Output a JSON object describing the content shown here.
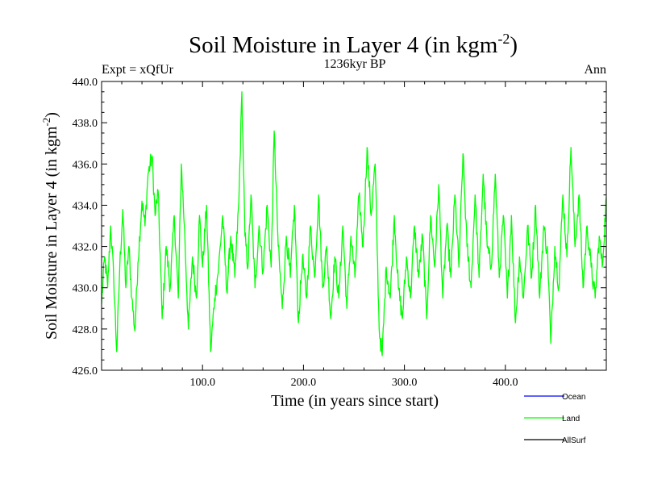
{
  "chart_data": {
    "type": "line",
    "title": "Soil Moisture in Layer 4 (in kgm",
    "title_sup": "-2",
    "title_close": ")",
    "subtitle": "1236kyr BP",
    "left_label": "Expt = xQfUr",
    "right_label": "Ann",
    "xlabel": "Time (in years since start)",
    "ylabel": "Soil Moisture in Layer 4 (in kgm",
    "ylabel_sup": "-2",
    "ylabel_close": ")",
    "xlim": [
      0,
      500
    ],
    "ylim": [
      426.0,
      440.0
    ],
    "x_ticks": [
      100,
      200,
      300,
      400
    ],
    "x_tick_labels": [
      "100.0",
      "200.0",
      "300.0",
      "400.0"
    ],
    "y_ticks": [
      426,
      428,
      430,
      432,
      434,
      436,
      438,
      440
    ],
    "y_tick_labels": [
      "426.0",
      "428.0",
      "430.0",
      "432.0",
      "434.0",
      "436.0",
      "438.0",
      "440.0"
    ],
    "legend_position": "bottom-right",
    "legend": [
      {
        "name": "Ocean",
        "color": "#0000ff"
      },
      {
        "name": "Land",
        "color": "#00ff00"
      },
      {
        "name": "AllSurf",
        "color": "#000000"
      }
    ],
    "series": [
      {
        "name": "Land",
        "color": "#00ff00",
        "anchors": [
          [
            0,
            429.2
          ],
          [
            3,
            431.5
          ],
          [
            6,
            430.0
          ],
          [
            9,
            433.0
          ],
          [
            12,
            430.5
          ],
          [
            15,
            426.9
          ],
          [
            18,
            431.0
          ],
          [
            21,
            433.8
          ],
          [
            24,
            430.0
          ],
          [
            27,
            432.0
          ],
          [
            30,
            429.5
          ],
          [
            33,
            427.9
          ],
          [
            36,
            431.2
          ],
          [
            40,
            434.2
          ],
          [
            43,
            433.0
          ],
          [
            46,
            435.5
          ],
          [
            50,
            436.4
          ],
          [
            53,
            433.5
          ],
          [
            56,
            434.7
          ],
          [
            60,
            428.5
          ],
          [
            64,
            432.0
          ],
          [
            68,
            430.0
          ],
          [
            72,
            433.5
          ],
          [
            76,
            429.5
          ],
          [
            79,
            436.0
          ],
          [
            82,
            433.0
          ],
          [
            86,
            428.0
          ],
          [
            90,
            431.5
          ],
          [
            94,
            429.5
          ],
          [
            97,
            433.5
          ],
          [
            100,
            431.0
          ],
          [
            104,
            434.0
          ],
          [
            108,
            426.9
          ],
          [
            112,
            429.5
          ],
          [
            116,
            431.0
          ],
          [
            120,
            433.5
          ],
          [
            124,
            429.8
          ],
          [
            128,
            432.5
          ],
          [
            132,
            430.5
          ],
          [
            136,
            434.2
          ],
          [
            139,
            439.5
          ],
          [
            142,
            432.5
          ],
          [
            145,
            431.0
          ],
          [
            148,
            434.5
          ],
          [
            152,
            430.0
          ],
          [
            156,
            433.0
          ],
          [
            160,
            430.8
          ],
          [
            164,
            434.0
          ],
          [
            168,
            431.0
          ],
          [
            171,
            437.6
          ],
          [
            175,
            432.0
          ],
          [
            179,
            429.0
          ],
          [
            183,
            432.5
          ],
          [
            187,
            430.5
          ],
          [
            191,
            434.0
          ],
          [
            195,
            428.3
          ],
          [
            199,
            431.5
          ],
          [
            203,
            429.5
          ],
          [
            207,
            433.0
          ],
          [
            211,
            430.5
          ],
          [
            215,
            434.5
          ],
          [
            219,
            430.0
          ],
          [
            223,
            432.0
          ],
          [
            227,
            428.5
          ],
          [
            231,
            431.5
          ],
          [
            235,
            429.5
          ],
          [
            239,
            433.0
          ],
          [
            243,
            429.0
          ],
          [
            247,
            432.5
          ],
          [
            251,
            430.5
          ],
          [
            255,
            434.5
          ],
          [
            259,
            432.0
          ],
          [
            263,
            436.8
          ],
          [
            267,
            433.5
          ],
          [
            271,
            436.0
          ],
          [
            275,
            428.0
          ],
          [
            278,
            426.7
          ],
          [
            282,
            431.0
          ],
          [
            286,
            429.5
          ],
          [
            290,
            433.5
          ],
          [
            294,
            430.0
          ],
          [
            298,
            428.5
          ],
          [
            302,
            431.5
          ],
          [
            306,
            429.5
          ],
          [
            310,
            433.0
          ],
          [
            314,
            430.5
          ],
          [
            318,
            432.5
          ],
          [
            322,
            428.5
          ],
          [
            326,
            433.5
          ],
          [
            330,
            431.0
          ],
          [
            334,
            435.0
          ],
          [
            338,
            429.5
          ],
          [
            342,
            433.0
          ],
          [
            346,
            430.5
          ],
          [
            350,
            434.5
          ],
          [
            354,
            431.0
          ],
          [
            358,
            436.5
          ],
          [
            362,
            432.0
          ],
          [
            366,
            430.0
          ],
          [
            370,
            434.5
          ],
          [
            374,
            430.5
          ],
          [
            378,
            435.5
          ],
          [
            382,
            432.0
          ],
          [
            386,
            431.0
          ],
          [
            390,
            435.5
          ],
          [
            394,
            430.5
          ],
          [
            398,
            433.5
          ],
          [
            402,
            429.5
          ],
          [
            406,
            433.5
          ],
          [
            410,
            428.3
          ],
          [
            414,
            431.5
          ],
          [
            418,
            429.5
          ],
          [
            422,
            433.0
          ],
          [
            426,
            430.5
          ],
          [
            430,
            434.0
          ],
          [
            434,
            429.5
          ],
          [
            438,
            433.0
          ],
          [
            442,
            431.5
          ],
          [
            445,
            427.3
          ],
          [
            449,
            432.0
          ],
          [
            453,
            430.0
          ],
          [
            457,
            434.5
          ],
          [
            461,
            431.5
          ],
          [
            465,
            436.8
          ],
          [
            469,
            432.0
          ],
          [
            473,
            434.5
          ],
          [
            477,
            430.0
          ],
          [
            481,
            433.0
          ],
          [
            485,
            431.0
          ],
          [
            489,
            429.5
          ],
          [
            493,
            432.5
          ],
          [
            496,
            431.0
          ],
          [
            500,
            434.4
          ]
        ],
        "jitter_amplitude": 0.9,
        "sample_step": 0.5
      }
    ]
  }
}
